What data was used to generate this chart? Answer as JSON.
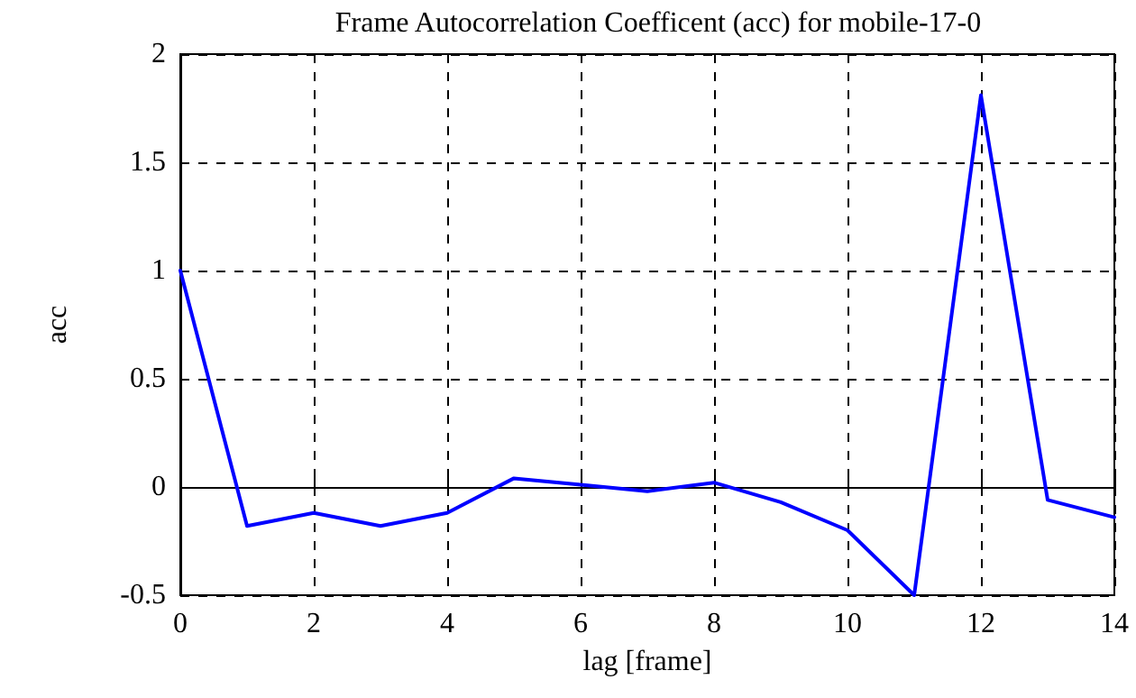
{
  "chart_data": {
    "type": "line",
    "title": "Frame Autocorrelation Coefficent (acc) for mobile-17-0",
    "xlabel": "lag [frame]",
    "ylabel": "acc",
    "x": [
      0,
      1,
      2,
      3,
      4,
      5,
      6,
      7,
      8,
      9,
      10,
      11,
      12,
      13,
      14
    ],
    "series": [
      {
        "color": "#0000ff",
        "values": [
          1.0,
          -0.18,
          -0.12,
          -0.18,
          -0.12,
          0.04,
          0.01,
          -0.02,
          0.02,
          -0.07,
          -0.2,
          -0.5,
          1.81,
          -0.06,
          -0.14
        ]
      }
    ],
    "xlim": [
      0,
      14
    ],
    "xticks": [
      0,
      2,
      4,
      6,
      8,
      10,
      12,
      14
    ],
    "ylim": [
      -0.5,
      2
    ],
    "yticks": [
      -0.5,
      0,
      0.5,
      1,
      1.5,
      2
    ],
    "grid": true,
    "marker": "none",
    "line_style": "solid"
  }
}
